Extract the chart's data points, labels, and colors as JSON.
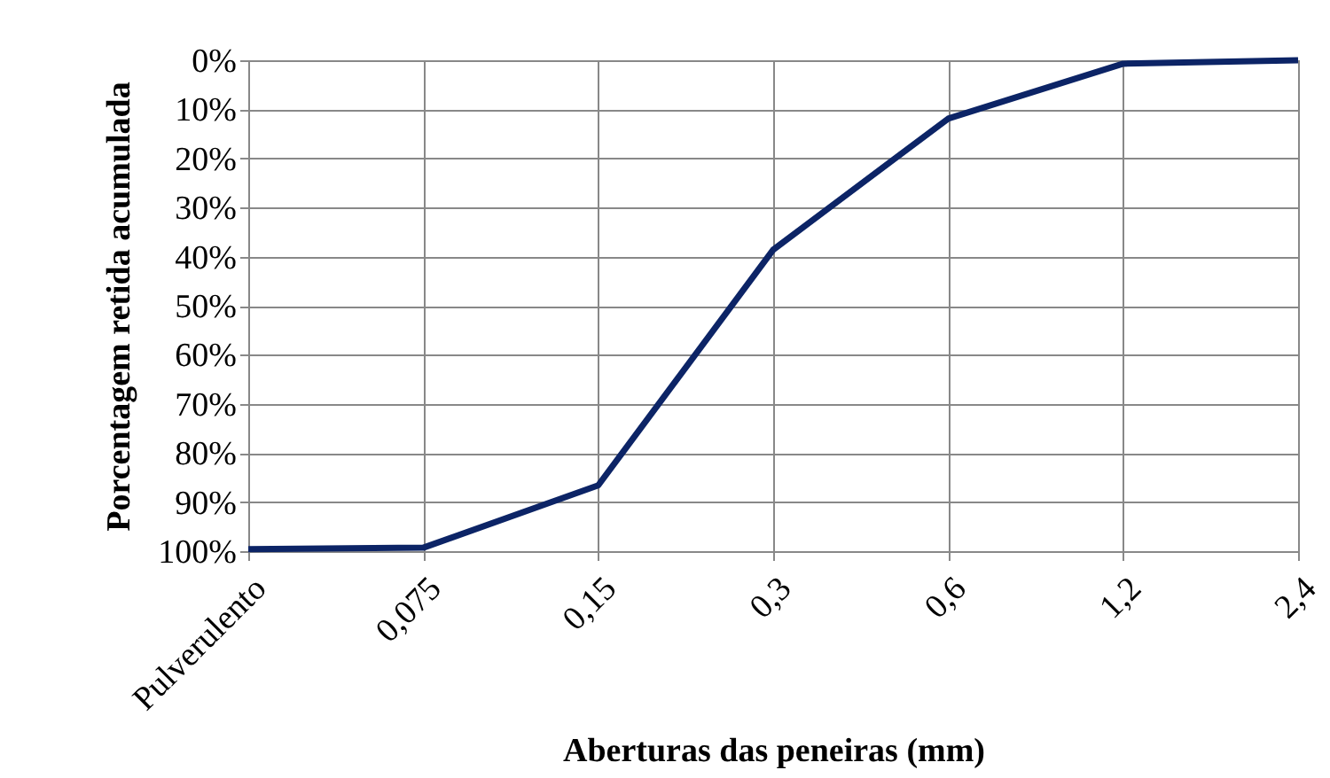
{
  "chart_data": {
    "type": "line",
    "xlabel": "Aberturas das peneiras (mm)",
    "ylabel": "Porcentagem retida acumulada",
    "categories": [
      "Pulverulento",
      "0,075",
      "0,15",
      "0,3",
      "0,6",
      "1,2",
      "2,4"
    ],
    "series": [
      {
        "color": "#0c2466",
        "values": [
          99.6,
          99.3,
          86.6,
          38.6,
          11.9,
          0.7,
          0
        ]
      }
    ],
    "ylim": [
      100,
      0
    ],
    "yticks": [
      {
        "value": 0,
        "label": "0%"
      },
      {
        "value": 10,
        "label": "10%"
      },
      {
        "value": 20,
        "label": "20%"
      },
      {
        "value": 30,
        "label": "30%"
      },
      {
        "value": 40,
        "label": "40%"
      },
      {
        "value": 50,
        "label": "50%"
      },
      {
        "value": 60,
        "label": "60%"
      },
      {
        "value": 70,
        "label": "70%"
      },
      {
        "value": 80,
        "label": "80%"
      },
      {
        "value": 90,
        "label": "90%"
      },
      {
        "value": 100,
        "label": "100%"
      }
    ],
    "grid": true,
    "marker": "none",
    "line_style": "solid",
    "legend": false
  }
}
